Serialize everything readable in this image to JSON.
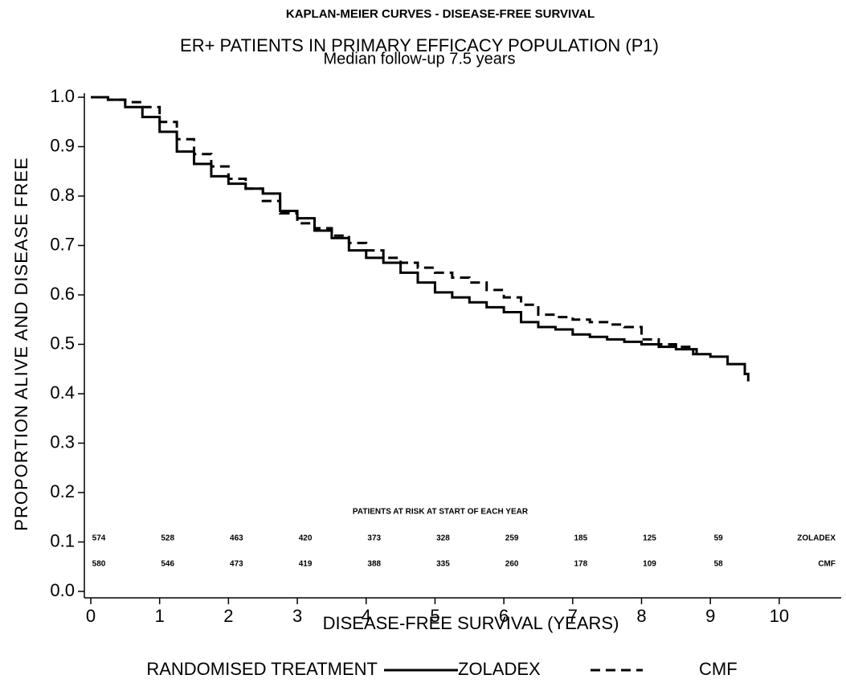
{
  "chart_data": {
    "type": "step",
    "title": "KAPLAN-MEIER CURVES - DISEASE-FREE SURVIVAL",
    "subtitle": "ER+ PATIENTS IN PRIMARY EFFICACY POPULATION (P1)",
    "note": "Median follow-up 7.5 years",
    "xlabel": "DISEASE-FREE SURVIVAL (YEARS)",
    "ylabel": "PROPORTION ALIVE AND DISEASE FREE",
    "xlim": [
      0,
      10.9
    ],
    "ylim": [
      0,
      1
    ],
    "xticks": [
      0,
      1,
      2,
      3,
      4,
      5,
      6,
      7,
      8,
      9,
      10
    ],
    "yticks": [
      {
        "value": 1,
        "label": "1.0"
      },
      0.9,
      0.8,
      0.7,
      0.6,
      0.5,
      0.4,
      0.3,
      0.2,
      0.1,
      {
        "value": 0,
        "label": "0.0"
      }
    ],
    "legend_title": "RANDOMISED TREATMENT",
    "series": [
      {
        "name": "ZOLADEX",
        "color": "#000000",
        "dash": "solid",
        "x": [
          0,
          0.25,
          0.5,
          0.75,
          1,
          1.25,
          1.5,
          1.75,
          2,
          2.25,
          2.5,
          2.75,
          3,
          3.25,
          3.5,
          3.75,
          4,
          4.25,
          4.5,
          4.75,
          5,
          5.25,
          5.5,
          5.75,
          6,
          6.25,
          6.5,
          6.75,
          7,
          7.25,
          7.5,
          7.75,
          8,
          8.25,
          8.5,
          8.75,
          9,
          9.25,
          9.5,
          9.55
        ],
        "values": [
          1,
          0.995,
          0.98,
          0.96,
          0.93,
          0.89,
          0.865,
          0.84,
          0.825,
          0.815,
          0.805,
          0.77,
          0.755,
          0.73,
          0.715,
          0.69,
          0.675,
          0.665,
          0.645,
          0.625,
          0.605,
          0.595,
          0.585,
          0.575,
          0.565,
          0.545,
          0.535,
          0.53,
          0.52,
          0.515,
          0.51,
          0.505,
          0.5,
          0.495,
          0.49,
          0.48,
          0.475,
          0.46,
          0.44,
          0.425
        ]
      },
      {
        "name": "CMF",
        "color": "#000000",
        "dash": "dashed",
        "x": [
          0,
          0.25,
          0.5,
          0.75,
          1,
          1.25,
          1.5,
          1.75,
          2,
          2.25,
          2.5,
          2.75,
          3,
          3.25,
          3.5,
          3.75,
          4,
          4.25,
          4.5,
          4.75,
          5,
          5.25,
          5.5,
          5.75,
          6,
          6.25,
          6.5,
          6.75,
          7,
          7.25,
          7.5,
          7.75,
          8,
          8.25,
          8.5,
          8.75,
          8.8
        ],
        "values": [
          1,
          0.995,
          0.99,
          0.98,
          0.95,
          0.915,
          0.885,
          0.86,
          0.835,
          0.815,
          0.79,
          0.765,
          0.745,
          0.735,
          0.72,
          0.705,
          0.69,
          0.675,
          0.665,
          0.655,
          0.645,
          0.635,
          0.625,
          0.61,
          0.595,
          0.58,
          0.56,
          0.555,
          0.55,
          0.545,
          0.54,
          0.535,
          0.51,
          0.5,
          0.495,
          0.49,
          0.48
        ]
      }
    ],
    "risk_table": {
      "title": "PATIENTS AT RISK AT START OF EACH YEAR",
      "rows": [
        {
          "name": "ZOLADEX",
          "counts": [
            574,
            528,
            463,
            420,
            373,
            328,
            259,
            185,
            125,
            59
          ]
        },
        {
          "name": "CMF",
          "counts": [
            580,
            546,
            473,
            419,
            388,
            335,
            260,
            178,
            109,
            58
          ]
        }
      ]
    }
  }
}
